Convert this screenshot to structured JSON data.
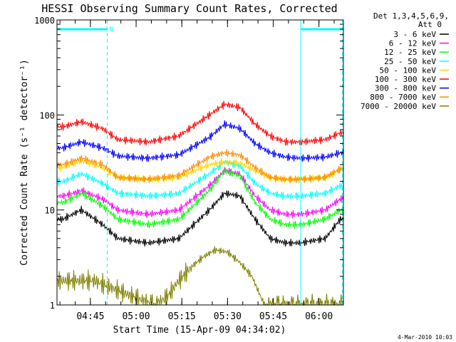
{
  "chart_data": {
    "type": "line",
    "title": "HESSI Observing Summary Count Rates, Corrected",
    "xlabel": "Start Time (15-Apr-09 04:34:02)",
    "ylabel": "Corrected Count Rate (s⁻¹ detector⁻¹)",
    "yscale": "log",
    "ylim": [
      1,
      1000
    ],
    "xlim_minutes": [
      0,
      94
    ],
    "x_ticks": [
      "04:45",
      "05:00",
      "05:15",
      "05:30",
      "05:45",
      "06:00"
    ],
    "y_ticks": [
      "1",
      "10",
      "100",
      "1000"
    ],
    "x_unit": "minutes after 04:34:02",
    "legend_header": [
      "Det 1,3,4,5,6,9,",
      "Att 0"
    ],
    "legend_position": "right",
    "footer_date": "4-Mar-2010 10:03",
    "night_flag": "N",
    "series": [
      {
        "name": "3 - 6 keV",
        "color": "#000000",
        "x": [
          2,
          8,
          15,
          20,
          30,
          40,
          50,
          55,
          60,
          65,
          70,
          75,
          80,
          88,
          93
        ],
        "values": [
          8,
          10,
          7,
          5,
          4.5,
          5,
          10,
          15,
          14,
          8,
          5,
          4.5,
          4.5,
          5,
          8
        ]
      },
      {
        "name": "6 - 12 keV",
        "color": "#ff00ff",
        "x": [
          2,
          8,
          15,
          20,
          30,
          40,
          50,
          55,
          60,
          65,
          70,
          75,
          80,
          88,
          93
        ],
        "values": [
          14,
          16,
          13,
          10,
          9,
          10,
          18,
          26,
          24,
          14,
          10,
          9,
          9,
          10,
          13
        ]
      },
      {
        "name": "12 - 25 keV",
        "color": "#00ff00",
        "x": [
          2,
          8,
          15,
          20,
          30,
          40,
          50,
          55,
          60,
          65,
          70,
          75,
          80,
          88,
          93
        ],
        "values": [
          12,
          15,
          11,
          8,
          7,
          8,
          16,
          26,
          23,
          12,
          8,
          7,
          7,
          8,
          10
        ]
      },
      {
        "name": "25 - 50 keV",
        "color": "#00ffff",
        "x": [
          2,
          8,
          15,
          20,
          30,
          40,
          50,
          55,
          60,
          65,
          70,
          75,
          80,
          88,
          93
        ],
        "values": [
          20,
          24,
          19,
          15,
          14,
          15,
          24,
          32,
          29,
          19,
          15,
          14,
          14,
          15,
          18
        ]
      },
      {
        "name": "50 - 100 keV",
        "color": "#ffd700",
        "x": [
          2,
          8,
          15,
          20,
          30,
          40,
          50,
          55,
          60,
          65,
          70,
          75,
          80,
          88,
          93
        ],
        "values": [
          28,
          33,
          28,
          22,
          21,
          22,
          30,
          32,
          31,
          26,
          22,
          21,
          21,
          22,
          27
        ]
      },
      {
        "name": "100 - 300 keV",
        "color": "#ff0000",
        "x": [
          2,
          8,
          15,
          20,
          30,
          40,
          50,
          55,
          60,
          65,
          70,
          75,
          80,
          88,
          93
        ],
        "values": [
          75,
          85,
          72,
          55,
          52,
          60,
          100,
          130,
          120,
          80,
          60,
          52,
          52,
          55,
          65
        ]
      },
      {
        "name": "300 - 800 keV",
        "color": "#0000ff",
        "x": [
          2,
          8,
          15,
          20,
          30,
          40,
          50,
          55,
          60,
          65,
          70,
          75,
          80,
          88,
          93
        ],
        "values": [
          45,
          52,
          45,
          37,
          35,
          38,
          58,
          80,
          72,
          50,
          40,
          36,
          35,
          36,
          40
        ]
      },
      {
        "name": "800 - 7000 keV",
        "color": "#ff8c00",
        "x": [
          2,
          8,
          15,
          20,
          30,
          40,
          50,
          55,
          60,
          65,
          70,
          75,
          80,
          88,
          93
        ],
        "values": [
          30,
          35,
          30,
          22,
          21,
          23,
          36,
          40,
          38,
          28,
          22,
          21,
          21,
          22,
          27
        ]
      },
      {
        "name": "7000 - 20000 keV",
        "color": "#808000",
        "x": [
          1,
          12,
          32,
          36,
          40,
          44,
          48,
          52,
          56,
          60,
          64,
          68,
          88,
          93
        ],
        "values": [
          1.8,
          1.8,
          1,
          1.2,
          1.8,
          2.5,
          3.2,
          3.8,
          3.6,
          2.8,
          2,
          1,
          1,
          1
        ]
      }
    ],
    "vertical_lines": {
      "solid": [
        0,
        80
      ],
      "dashed": [
        16.5,
        94
      ]
    },
    "status_bars": [
      [
        0,
        16.5
      ],
      [
        80,
        94
      ]
    ]
  }
}
